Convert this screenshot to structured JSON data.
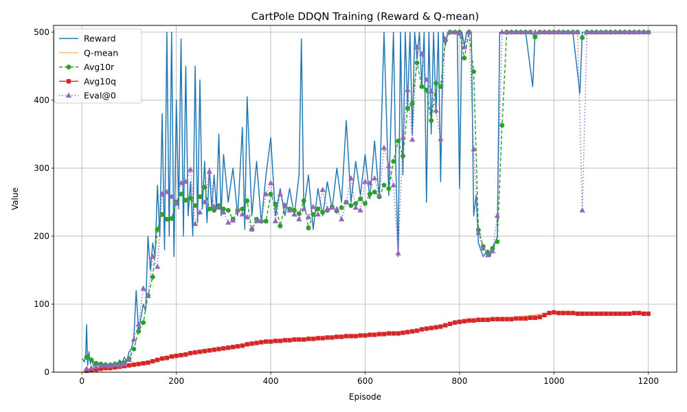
{
  "chart_data": {
    "type": "line",
    "title": "CartPole DDQN Training (Reward & Q-mean)",
    "xlabel": "Episode",
    "ylabel": "Value",
    "xlim": [
      -60,
      1260
    ],
    "ylim": [
      0,
      510
    ],
    "x_ticks": [
      0,
      200,
      400,
      600,
      800,
      1000,
      1200
    ],
    "y_ticks": [
      0,
      100,
      200,
      300,
      400,
      500
    ],
    "grid": true,
    "legend_position": "top-left",
    "series": [
      {
        "name": "Reward",
        "color": "#1f77b4",
        "style": "solid",
        "x": [
          1,
          5,
          8,
          10,
          12,
          15,
          18,
          20,
          25,
          30,
          35,
          40,
          45,
          50,
          55,
          60,
          65,
          70,
          75,
          80,
          85,
          90,
          95,
          100,
          105,
          110,
          115,
          120,
          125,
          130,
          135,
          140,
          145,
          150,
          155,
          160,
          165,
          170,
          175,
          180,
          185,
          190,
          195,
          200,
          205,
          210,
          215,
          220,
          225,
          230,
          235,
          240,
          245,
          250,
          255,
          260,
          265,
          270,
          275,
          280,
          285,
          290,
          295,
          300,
          310,
          320,
          330,
          340,
          345,
          350,
          360,
          370,
          380,
          390,
          400,
          410,
          420,
          430,
          440,
          450,
          460,
          465,
          470,
          480,
          490,
          500,
          510,
          520,
          530,
          540,
          550,
          560,
          570,
          580,
          590,
          600,
          610,
          620,
          630,
          640,
          650,
          660,
          665,
          670,
          675,
          680,
          685,
          690,
          695,
          700,
          705,
          710,
          715,
          720,
          725,
          730,
          735,
          740,
          745,
          750,
          755,
          760,
          765,
          770,
          775,
          780,
          785,
          790,
          795,
          800,
          805,
          810,
          815,
          820,
          825,
          830,
          835,
          840,
          845,
          850,
          855,
          860,
          865,
          870,
          875,
          880,
          885,
          890,
          900,
          920,
          940,
          955,
          960,
          980,
          1000,
          1020,
          1040,
          1055,
          1060,
          1065,
          1080,
          1100,
          1120,
          1140,
          1160,
          1180,
          1200
        ],
        "y": [
          20,
          15,
          25,
          70,
          10,
          30,
          12,
          20,
          9,
          15,
          10,
          14,
          9,
          12,
          10,
          14,
          11,
          15,
          12,
          18,
          14,
          22,
          16,
          30,
          35,
          50,
          120,
          60,
          80,
          100,
          90,
          200,
          150,
          190,
          170,
          275,
          200,
          380,
          180,
          500,
          200,
          500,
          170,
          400,
          240,
          490,
          200,
          450,
          230,
          280,
          200,
          450,
          220,
          430,
          240,
          310,
          220,
          300,
          240,
          290,
          240,
          350,
          230,
          320,
          250,
          300,
          230,
          360,
          210,
          405,
          230,
          310,
          220,
          290,
          345,
          230,
          270,
          230,
          270,
          230,
          290,
          490,
          240,
          290,
          210,
          270,
          230,
          280,
          240,
          300,
          250,
          370,
          250,
          310,
          260,
          320,
          255,
          340,
          255,
          500,
          260,
          500,
          300,
          170,
          500,
          290,
          500,
          390,
          500,
          350,
          500,
          460,
          500,
          420,
          500,
          250,
          500,
          350,
          500,
          380,
          500,
          280,
          500,
          480,
          500,
          500,
          500,
          500,
          500,
          270,
          500,
          480,
          500,
          500,
          500,
          230,
          260,
          190,
          180,
          170,
          175,
          180,
          170,
          185,
          190,
          200,
          500,
          500,
          500,
          500,
          500,
          420,
          500,
          500,
          500,
          500,
          500,
          410,
          500,
          500,
          500,
          500,
          500,
          500,
          500,
          500,
          500
        ]
      },
      {
        "name": "Q-mean",
        "color": "#ffbb78",
        "style": "solid",
        "x": [
          1,
          100,
          200,
          300,
          400,
          500,
          600,
          700,
          800,
          900,
          1000,
          1100,
          1200
        ],
        "y": [
          1,
          10,
          25,
          35,
          46,
          50,
          55,
          60,
          74,
          79,
          88,
          87,
          87
        ]
      },
      {
        "name": "Avg10r",
        "color": "#2ca02c",
        "style": "dashed",
        "marker": "circle",
        "x": [
          10,
          20,
          30,
          40,
          50,
          60,
          70,
          80,
          90,
          100,
          110,
          120,
          130,
          140,
          150,
          160,
          170,
          180,
          190,
          200,
          210,
          220,
          230,
          240,
          250,
          260,
          270,
          280,
          290,
          300,
          310,
          320,
          330,
          340,
          350,
          360,
          370,
          380,
          390,
          400,
          410,
          420,
          430,
          440,
          450,
          460,
          470,
          480,
          490,
          500,
          510,
          520,
          530,
          540,
          550,
          560,
          570,
          580,
          590,
          600,
          610,
          620,
          630,
          640,
          650,
          660,
          670,
          680,
          690,
          700,
          710,
          720,
          730,
          740,
          750,
          760,
          770,
          780,
          790,
          800,
          810,
          820,
          830,
          840,
          850,
          860,
          870,
          880,
          890,
          900,
          910,
          920,
          930,
          940,
          950,
          960,
          970,
          980,
          990,
          1000,
          1010,
          1020,
          1030,
          1040,
          1050,
          1060,
          1070,
          1080,
          1090,
          1100,
          1110,
          1120,
          1130,
          1140,
          1150,
          1160,
          1170,
          1180,
          1190,
          1200
        ],
        "y": [
          22,
          18,
          13,
          12,
          11,
          10,
          12,
          13,
          14,
          20,
          34,
          60,
          73,
          113,
          140,
          210,
          232,
          225,
          226,
          250,
          262,
          253,
          256,
          245,
          258,
          272,
          240,
          238,
          245,
          240,
          238,
          225,
          238,
          240,
          252,
          210,
          225,
          222,
          222,
          262,
          247,
          215,
          245,
          240,
          238,
          233,
          252,
          212,
          232,
          240,
          235,
          238,
          243,
          237,
          242,
          250,
          245,
          248,
          255,
          248,
          262,
          265,
          258,
          275,
          270,
          310,
          340,
          318,
          388,
          395,
          455,
          420,
          415,
          370,
          425,
          420,
          488,
          500,
          500,
          500,
          462,
          500,
          442,
          209,
          185,
          175,
          182,
          192,
          363,
          500,
          500,
          500,
          500,
          500,
          500,
          493,
          500,
          500,
          500,
          500,
          500,
          500,
          500,
          500,
          500,
          492,
          500,
          500,
          500,
          500,
          500,
          500,
          500,
          500,
          500,
          500,
          500,
          500,
          500,
          500
        ]
      },
      {
        "name": "Avg10q",
        "color": "#d62728",
        "style": "solid",
        "marker": "square",
        "x": [
          10,
          20,
          30,
          40,
          50,
          60,
          70,
          80,
          90,
          100,
          110,
          120,
          130,
          140,
          150,
          160,
          170,
          180,
          190,
          200,
          210,
          220,
          230,
          240,
          250,
          260,
          270,
          280,
          290,
          300,
          310,
          320,
          330,
          340,
          350,
          360,
          370,
          380,
          390,
          400,
          410,
          420,
          430,
          440,
          450,
          460,
          470,
          480,
          490,
          500,
          510,
          520,
          530,
          540,
          550,
          560,
          570,
          580,
          590,
          600,
          610,
          620,
          630,
          640,
          650,
          660,
          670,
          680,
          690,
          700,
          710,
          720,
          730,
          740,
          750,
          760,
          770,
          780,
          790,
          800,
          810,
          820,
          830,
          840,
          850,
          860,
          870,
          880,
          890,
          900,
          910,
          920,
          930,
          940,
          950,
          960,
          970,
          980,
          990,
          1000,
          1010,
          1020,
          1030,
          1040,
          1050,
          1060,
          1070,
          1080,
          1090,
          1100,
          1110,
          1120,
          1130,
          1140,
          1150,
          1160,
          1170,
          1180,
          1190,
          1200
        ],
        "y": [
          2,
          3,
          4,
          5,
          6,
          6,
          7,
          8,
          9,
          10,
          11,
          12,
          13,
          14,
          16,
          18,
          20,
          21,
          23,
          24,
          25,
          26,
          28,
          29,
          30,
          31,
          32,
          33,
          34,
          35,
          36,
          37,
          38,
          39,
          41,
          42,
          43,
          44,
          45,
          45,
          46,
          46,
          47,
          47,
          48,
          48,
          48,
          49,
          49,
          50,
          50,
          51,
          51,
          52,
          52,
          53,
          53,
          53,
          54,
          54,
          55,
          55,
          56,
          56,
          57,
          57,
          57,
          58,
          59,
          60,
          61,
          63,
          64,
          65,
          66,
          67,
          69,
          71,
          73,
          74,
          75,
          76,
          76,
          77,
          77,
          77,
          78,
          78,
          78,
          78,
          78,
          79,
          79,
          79,
          80,
          80,
          81,
          84,
          87,
          88,
          87,
          87,
          87,
          87,
          86,
          86,
          86,
          86,
          86,
          86,
          86,
          86,
          86,
          86,
          86,
          86,
          87,
          87,
          86,
          86
        ]
      },
      {
        "name": "Eval@0",
        "color": "#9467bd",
        "style": "dotted",
        "marker": "triangle",
        "x": [
          10,
          20,
          30,
          40,
          50,
          60,
          70,
          80,
          90,
          100,
          110,
          120,
          130,
          140,
          150,
          160,
          170,
          180,
          190,
          200,
          210,
          220,
          230,
          240,
          250,
          260,
          270,
          280,
          290,
          300,
          310,
          320,
          330,
          340,
          350,
          360,
          370,
          380,
          390,
          400,
          410,
          420,
          430,
          440,
          450,
          460,
          470,
          480,
          490,
          500,
          510,
          520,
          530,
          540,
          550,
          560,
          570,
          580,
          590,
          600,
          610,
          620,
          630,
          640,
          650,
          660,
          670,
          680,
          690,
          700,
          710,
          720,
          730,
          740,
          750,
          760,
          770,
          780,
          790,
          800,
          810,
          820,
          830,
          840,
          850,
          860,
          870,
          880,
          890,
          900,
          910,
          920,
          930,
          940,
          950,
          960,
          970,
          980,
          990,
          1000,
          1010,
          1020,
          1030,
          1040,
          1050,
          1060,
          1070,
          1080,
          1090,
          1100,
          1110,
          1120,
          1130,
          1140,
          1150,
          1160,
          1170,
          1180,
          1190,
          1200
        ],
        "y": [
          5,
          6,
          8,
          9,
          10,
          9,
          11,
          10,
          12,
          18,
          48,
          70,
          123,
          112,
          170,
          155,
          262,
          265,
          258,
          248,
          278,
          280,
          298,
          218,
          235,
          250,
          295,
          244,
          242,
          235,
          220,
          223,
          238,
          232,
          228,
          210,
          222,
          223,
          262,
          278,
          222,
          262,
          245,
          238,
          232,
          225,
          240,
          228,
          243,
          232,
          268,
          240,
          242,
          240,
          225,
          250,
          285,
          242,
          238,
          280,
          278,
          285,
          260,
          330,
          303,
          275,
          175,
          345,
          415,
          342,
          478,
          468,
          430,
          413,
          385,
          343,
          490,
          500,
          500,
          498,
          478,
          500,
          328,
          205,
          182,
          172,
          178,
          230,
          500,
          500,
          500,
          500,
          500,
          500,
          500,
          500,
          500,
          500,
          500,
          500,
          500,
          500,
          500,
          500,
          500,
          238,
          500,
          500,
          500,
          500,
          500,
          500,
          500,
          500,
          500,
          500,
          500,
          500,
          500,
          500
        ]
      }
    ]
  }
}
